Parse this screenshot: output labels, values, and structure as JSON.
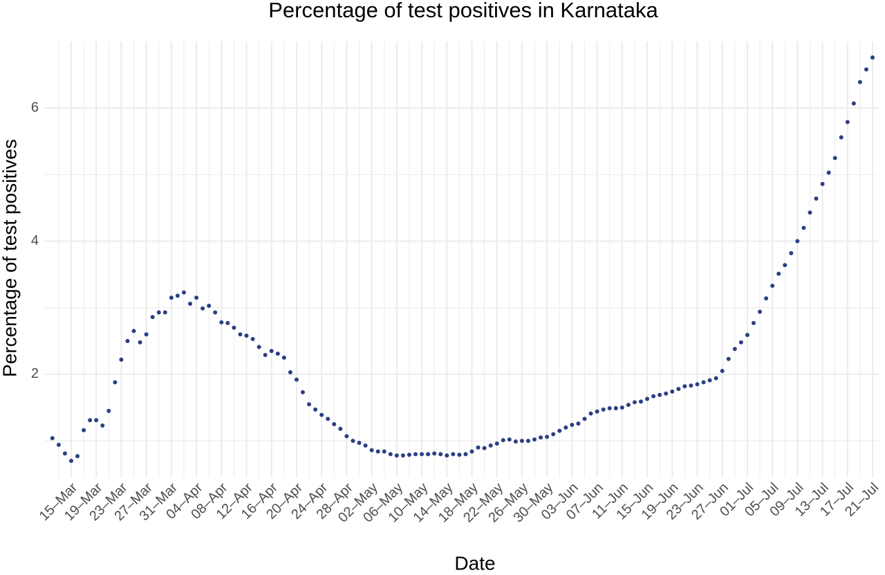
{
  "chart_data": {
    "type": "scatter",
    "title": "Percentage of test positives in Karnataka",
    "xlabel": "Date",
    "ylabel": "Percentage of test positives",
    "color": "#2b3f82",
    "grid": true,
    "ylim": [
      0.45,
      7.0
    ],
    "yticks": [
      2,
      4,
      6
    ],
    "x": [
      "12–Mar",
      "13–Mar",
      "14–Mar",
      "15–Mar",
      "16–Mar",
      "17–Mar",
      "18–Mar",
      "19–Mar",
      "20–Mar",
      "21–Mar",
      "22–Mar",
      "23–Mar",
      "24–Mar",
      "25–Mar",
      "26–Mar",
      "27–Mar",
      "28–Mar",
      "29–Mar",
      "30–Mar",
      "31–Mar",
      "01–Apr",
      "02–Apr",
      "03–Apr",
      "04–Apr",
      "05–Apr",
      "06–Apr",
      "07–Apr",
      "08–Apr",
      "09–Apr",
      "10–Apr",
      "11–Apr",
      "12–Apr",
      "13–Apr",
      "14–Apr",
      "15–Apr",
      "16–Apr",
      "17–Apr",
      "18–Apr",
      "19–Apr",
      "20–Apr",
      "21–Apr",
      "22–Apr",
      "23–Apr",
      "24–Apr",
      "25–Apr",
      "26–Apr",
      "27–Apr",
      "28–Apr",
      "29–Apr",
      "30–Apr",
      "01–May",
      "02–May",
      "03–May",
      "04–May",
      "05–May",
      "06–May",
      "07–May",
      "08–May",
      "09–May",
      "10–May",
      "11–May",
      "12–May",
      "13–May",
      "14–May",
      "15–May",
      "16–May",
      "17–May",
      "18–May",
      "19–May",
      "20–May",
      "21–May",
      "22–May",
      "23–May",
      "24–May",
      "25–May",
      "26–May",
      "27–May",
      "28–May",
      "29–May",
      "30–May",
      "31–May",
      "01–Jun",
      "02–Jun",
      "03–Jun",
      "04–Jun",
      "05–Jun",
      "06–Jun",
      "07–Jun",
      "08–Jun",
      "09–Jun",
      "10–Jun",
      "11–Jun",
      "12–Jun",
      "13–Jun",
      "14–Jun",
      "15–Jun",
      "16–Jun",
      "17–Jun",
      "18–Jun",
      "19–Jun",
      "20–Jun",
      "21–Jun",
      "22–Jun",
      "23–Jun",
      "24–Jun",
      "25–Jun",
      "26–Jun",
      "27–Jun",
      "28–Jun",
      "29–Jun",
      "30–Jun",
      "01–Jul",
      "02–Jul",
      "03–Jul",
      "04–Jul",
      "05–Jul",
      "06–Jul",
      "07–Jul",
      "08–Jul",
      "09–Jul",
      "10–Jul",
      "11–Jul",
      "12–Jul",
      "13–Jul",
      "14–Jul",
      "15–Jul",
      "16–Jul",
      "17–Jul",
      "18–Jul",
      "19–Jul",
      "20–Jul",
      "21–Jul"
    ],
    "values": [
      1.04,
      0.94,
      0.81,
      0.7,
      0.77,
      1.16,
      1.31,
      1.31,
      1.23,
      1.45,
      1.88,
      2.22,
      2.5,
      2.65,
      2.48,
      2.6,
      2.86,
      2.93,
      2.93,
      3.15,
      3.18,
      3.23,
      3.06,
      3.15,
      2.99,
      3.03,
      2.93,
      2.78,
      2.77,
      2.7,
      2.6,
      2.58,
      2.53,
      2.41,
      2.29,
      2.35,
      2.31,
      2.25,
      2.03,
      1.92,
      1.73,
      1.55,
      1.47,
      1.39,
      1.33,
      1.25,
      1.18,
      1.07,
      1.0,
      0.97,
      0.93,
      0.86,
      0.84,
      0.84,
      0.8,
      0.78,
      0.78,
      0.79,
      0.8,
      0.8,
      0.8,
      0.81,
      0.8,
      0.78,
      0.8,
      0.79,
      0.8,
      0.84,
      0.9,
      0.89,
      0.93,
      0.96,
      1.01,
      1.02,
      0.99,
      1.0,
      1.0,
      1.02,
      1.05,
      1.06,
      1.1,
      1.15,
      1.2,
      1.24,
      1.26,
      1.33,
      1.41,
      1.44,
      1.47,
      1.49,
      1.49,
      1.5,
      1.54,
      1.58,
      1.59,
      1.63,
      1.67,
      1.69,
      1.71,
      1.74,
      1.78,
      1.82,
      1.83,
      1.85,
      1.88,
      1.91,
      1.94,
      2.05,
      2.23,
      2.38,
      2.48,
      2.59,
      2.77,
      2.94,
      3.14,
      3.33,
      3.51,
      3.64,
      3.82,
      4.0,
      4.2,
      4.43,
      4.64,
      4.86,
      5.03,
      5.25,
      5.56,
      5.79,
      6.07,
      6.39,
      6.58,
      6.76
    ],
    "xticks": [
      "15–Mar",
      "19–Mar",
      "23–Mar",
      "27–Mar",
      "31–Mar",
      "04–Apr",
      "08–Apr",
      "12–Apr",
      "16–Apr",
      "20–Apr",
      "24–Apr",
      "28–Apr",
      "02–May",
      "06–May",
      "10–May",
      "14–May",
      "18–May",
      "22–May",
      "26–May",
      "30–May",
      "03–Jun",
      "07–Jun",
      "11–Jun",
      "15–Jun",
      "19–Jun",
      "23–Jun",
      "27–Jun",
      "01–Jul",
      "05–Jul",
      "09–Jul",
      "13–Jul",
      "17–Jul",
      "21–Jul"
    ]
  }
}
